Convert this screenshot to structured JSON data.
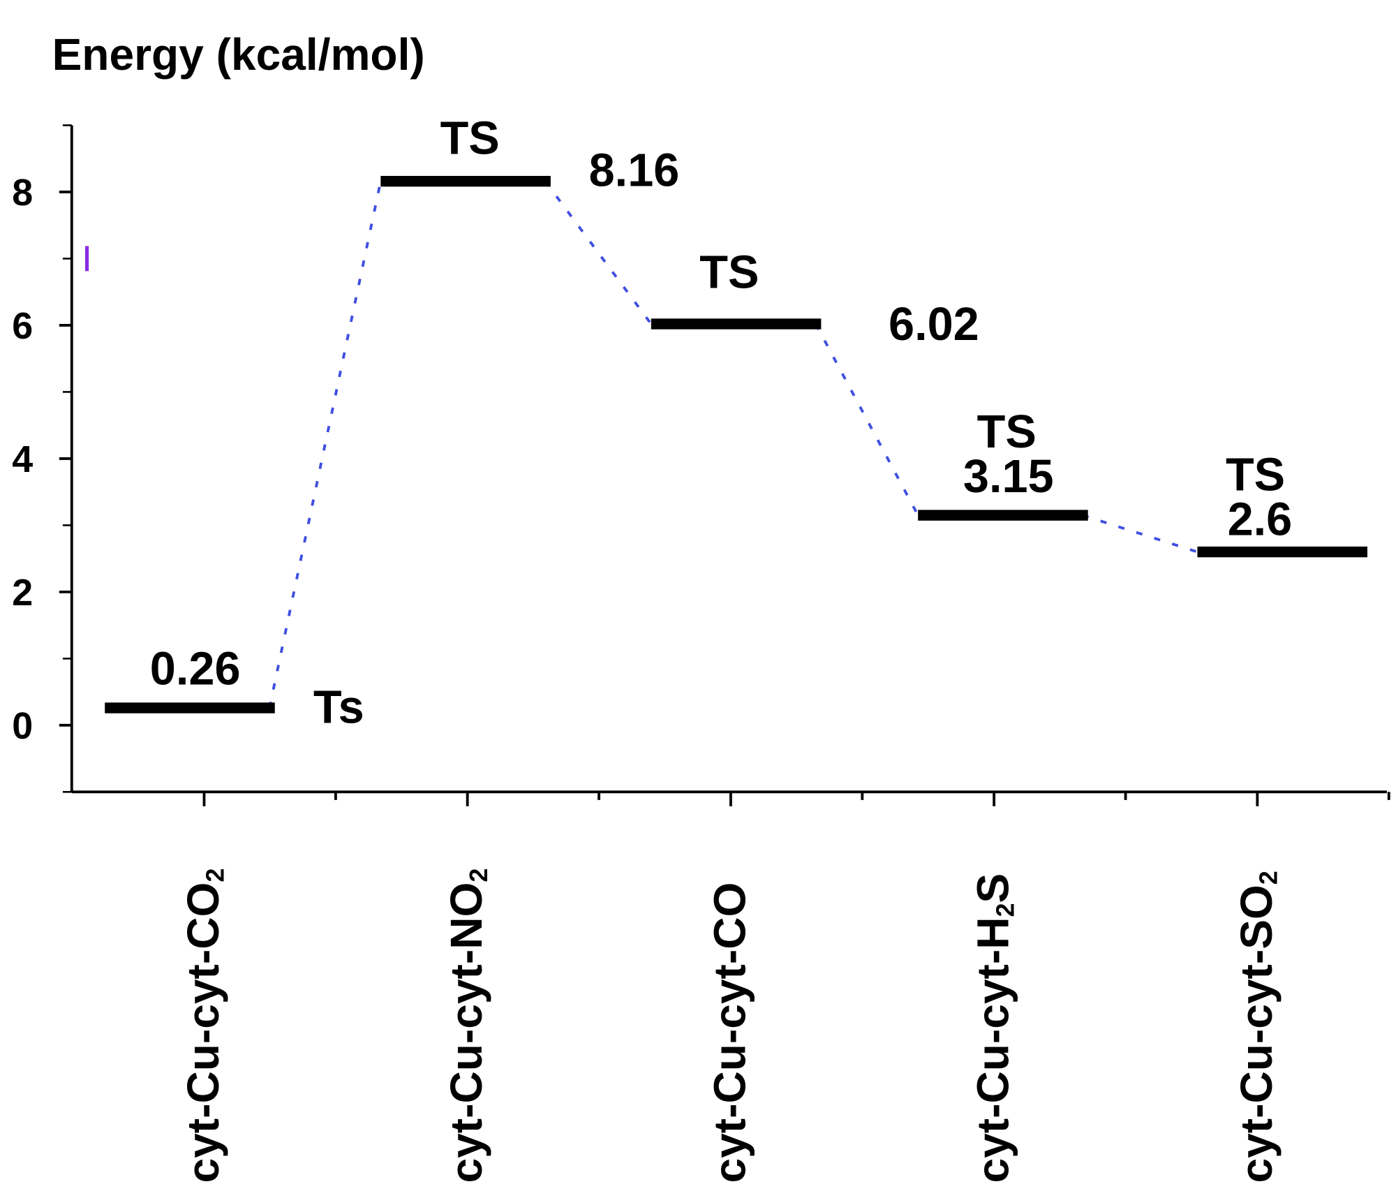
{
  "chart_data": {
    "type": "energy-level diagram",
    "title": "Energy (kcal/mol)",
    "xlabel": "",
    "ylabel": "",
    "ylim": [
      -1,
      9
    ],
    "yticks": [
      0,
      2,
      4,
      6,
      8
    ],
    "yminor_ticks": [
      -1,
      1,
      3,
      5,
      7,
      9
    ],
    "grid": false,
    "categories": [
      "cyt-Cu-cyt-CO2",
      "cyt-Cu-cyt-NO2",
      "cyt-Cu-cyt-CO",
      "cyt-Cu-cyt-H2S",
      "cyt-Cu-cyt-SO2"
    ],
    "values": [
      0.26,
      8.16,
      6.02,
      3.15,
      2.6
    ],
    "value_labels": [
      "0.26",
      "8.16",
      "6.02",
      "3.15",
      "2.6"
    ],
    "state_labels": [
      "Ts",
      "TS",
      "TS",
      "TS",
      "TS"
    ],
    "connector_style": "dashed",
    "colors": {
      "levels": "#000000",
      "connector": "#3f4fe0",
      "marker": "#8a2be2",
      "axis": "#000000"
    }
  }
}
